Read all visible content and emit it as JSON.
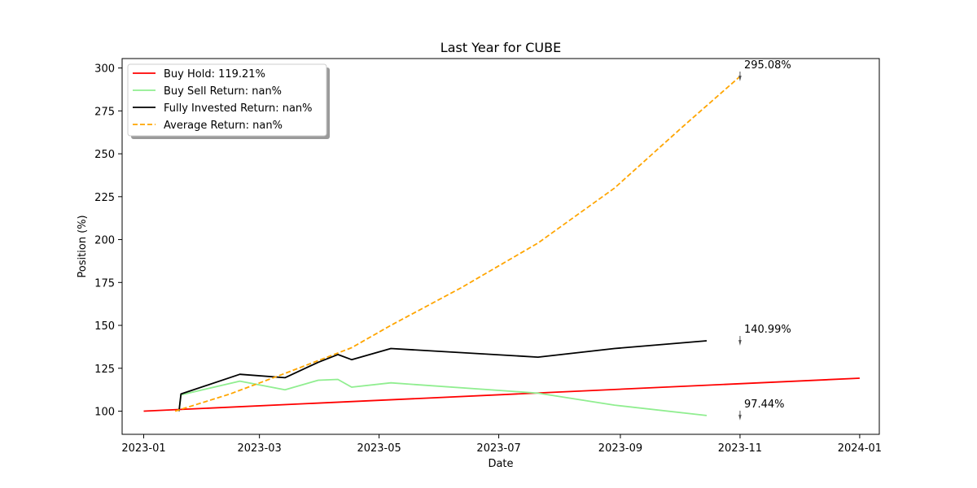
{
  "chart_data": {
    "type": "line",
    "title": "Last Year for CUBE",
    "xlabel": "Date",
    "ylabel": "Position (%)",
    "xlim": [
      "2022-12-21",
      "2024-01-11"
    ],
    "ylim": [
      86.5,
      305.5
    ],
    "x_ticks": [
      "2023-01",
      "2023-03",
      "2023-05",
      "2023-07",
      "2023-09",
      "2023-11",
      "2024-01"
    ],
    "y_ticks": [
      100,
      125,
      150,
      175,
      200,
      225,
      250,
      275,
      300
    ],
    "grid": false,
    "legend_position": "top-left",
    "series": [
      {
        "name": "Buy Hold: 119.21%",
        "color": "#ff0000",
        "dash": "solid",
        "points": [
          {
            "x": "2023-01-01",
            "y": 100.0
          },
          {
            "x": "2024-01-01",
            "y": 119.21
          }
        ]
      },
      {
        "name": "Buy Sell Return: nan%",
        "color": "#90ee90",
        "dash": "solid",
        "points": [
          {
            "x": "2023-01-19",
            "y": 100.0
          },
          {
            "x": "2023-01-20",
            "y": 109.5
          },
          {
            "x": "2023-02-19",
            "y": 117.5
          },
          {
            "x": "2023-03-14",
            "y": 112.5
          },
          {
            "x": "2023-03-31",
            "y": 118.0
          },
          {
            "x": "2023-04-10",
            "y": 118.5
          },
          {
            "x": "2023-04-17",
            "y": 114.0
          },
          {
            "x": "2023-05-07",
            "y": 116.5
          },
          {
            "x": "2023-07-21",
            "y": 110.5
          },
          {
            "x": "2023-08-29",
            "y": 103.5
          },
          {
            "x": "2023-10-15",
            "y": 97.44
          }
        ]
      },
      {
        "name": "Fully Invested Return: nan%",
        "color": "#000000",
        "dash": "solid",
        "points": [
          {
            "x": "2023-01-19",
            "y": 100.0
          },
          {
            "x": "2023-01-20",
            "y": 110.0
          },
          {
            "x": "2023-02-19",
            "y": 121.5
          },
          {
            "x": "2023-03-14",
            "y": 119.5
          },
          {
            "x": "2023-03-31",
            "y": 128.5
          },
          {
            "x": "2023-04-10",
            "y": 133.0
          },
          {
            "x": "2023-04-17",
            "y": 130.0
          },
          {
            "x": "2023-05-07",
            "y": 136.5
          },
          {
            "x": "2023-07-21",
            "y": 131.5
          },
          {
            "x": "2023-08-29",
            "y": 136.5
          },
          {
            "x": "2023-10-15",
            "y": 140.99
          }
        ]
      },
      {
        "name": "Average Return: nan%",
        "color": "#ffa500",
        "dash": "dashed",
        "points": [
          {
            "x": "2023-01-17",
            "y": 100.0
          },
          {
            "x": "2023-02-14",
            "y": 110.0
          },
          {
            "x": "2023-03-14",
            "y": 122.0
          },
          {
            "x": "2023-04-17",
            "y": 137.0
          },
          {
            "x": "2023-05-07",
            "y": 150.0
          },
          {
            "x": "2023-06-12",
            "y": 172.0
          },
          {
            "x": "2023-07-21",
            "y": 198.0
          },
          {
            "x": "2023-08-29",
            "y": 230.0
          },
          {
            "x": "2023-10-03",
            "y": 266.0
          },
          {
            "x": "2023-11-01",
            "y": 295.08
          }
        ]
      }
    ],
    "annotations": [
      {
        "text": "295.08%",
        "x": "2023-11-01",
        "y": 295.08
      },
      {
        "text": "140.99%",
        "x": "2023-11-01",
        "y": 140.99
      },
      {
        "text": "97.44%",
        "x": "2023-11-01",
        "y": 97.44
      }
    ]
  }
}
